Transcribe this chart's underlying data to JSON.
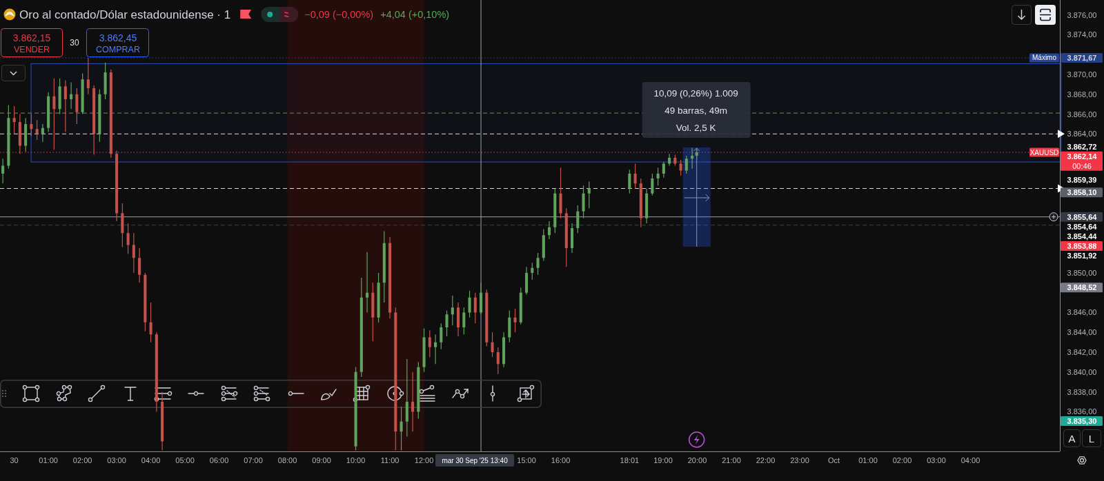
{
  "chart_data": {
    "type": "candlestick",
    "title": "Oro al contado/Dólar estadounidense · 1",
    "x": [
      "2025-09-29T23:40",
      "2025-09-29T23:50",
      "2025-09-30T00:00",
      "2025-09-30T00:10",
      "2025-09-30T00:20",
      "2025-09-30T00:30",
      "2025-09-30T00:40",
      "2025-09-30T00:50",
      "2025-09-30T01:00",
      "2025-09-30T01:10",
      "2025-09-30T01:20",
      "2025-09-30T01:30",
      "2025-09-30T01:40",
      "2025-09-30T01:50",
      "2025-09-30T02:00",
      "2025-09-30T02:10",
      "2025-09-30T02:20",
      "2025-09-30T02:30",
      "2025-09-30T02:40",
      "2025-09-30T02:50",
      "2025-09-30T03:00",
      "2025-09-30T03:10",
      "2025-09-30T03:20",
      "2025-09-30T03:30",
      "2025-09-30T03:40",
      "2025-09-30T03:50",
      "2025-09-30T04:00",
      "2025-09-30T04:10",
      "2025-09-30T04:20",
      "2025-09-30T10:00",
      "2025-09-30T10:10",
      "2025-09-30T10:20",
      "2025-09-30T10:30",
      "2025-09-30T10:40",
      "2025-09-30T10:50",
      "2025-09-30T11:00",
      "2025-09-30T11:10",
      "2025-09-30T11:20",
      "2025-09-30T11:30",
      "2025-09-30T11:40",
      "2025-09-30T11:50",
      "2025-09-30T12:00",
      "2025-09-30T12:10",
      "2025-09-30T12:20",
      "2025-09-30T12:30",
      "2025-09-30T12:40",
      "2025-09-30T12:50",
      "2025-09-30T13:00",
      "2025-09-30T13:10",
      "2025-09-30T13:20",
      "2025-09-30T13:30",
      "2025-09-30T13:40",
      "2025-09-30T13:50",
      "2025-09-30T14:00",
      "2025-09-30T14:10",
      "2025-09-30T14:20",
      "2025-09-30T14:30",
      "2025-09-30T14:40",
      "2025-09-30T14:50",
      "2025-09-30T15:00",
      "2025-09-30T15:10",
      "2025-09-30T15:20",
      "2025-09-30T15:30",
      "2025-09-30T15:40",
      "2025-09-30T15:50",
      "2025-09-30T16:00",
      "2025-09-30T16:10",
      "2025-09-30T16:20",
      "2025-09-30T16:30",
      "2025-09-30T16:40",
      "2025-09-30T16:50",
      "2025-09-30T18:01",
      "2025-09-30T18:11",
      "2025-09-30T18:21",
      "2025-09-30T18:31",
      "2025-09-30T18:41",
      "2025-09-30T18:51",
      "2025-09-30T19:01",
      "2025-09-30T19:11",
      "2025-09-30T19:21",
      "2025-09-30T19:31",
      "2025-09-30T19:41",
      "2025-09-30T19:51",
      "2025-09-30T19:59"
    ],
    "ohlc": [
      [
        3860.0,
        3861.5,
        3859.0,
        3860.8
      ],
      [
        3860.8,
        3866.9,
        3860.5,
        3865.6
      ],
      [
        3865.6,
        3866.8,
        3864.0,
        3865.2
      ],
      [
        3865.2,
        3866.0,
        3862.0,
        3862.8
      ],
      [
        3862.8,
        3865.6,
        3862.2,
        3865.0
      ],
      [
        3865.0,
        3866.0,
        3863.8,
        3864.5
      ],
      [
        3864.5,
        3865.4,
        3863.4,
        3864.0
      ],
      [
        3864.0,
        3865.0,
        3863.2,
        3864.6
      ],
      [
        3864.6,
        3868.2,
        3864.2,
        3867.8
      ],
      [
        3867.8,
        3869.6,
        3862.4,
        3866.5
      ],
      [
        3866.5,
        3869.6,
        3866.0,
        3868.8
      ],
      [
        3868.8,
        3869.4,
        3864.2,
        3867.5
      ],
      [
        3867.5,
        3869.2,
        3866.5,
        3868.0
      ],
      [
        3868.0,
        3868.6,
        3865.0,
        3866.2
      ],
      [
        3866.2,
        3870.1,
        3866.0,
        3869.5
      ],
      [
        3869.5,
        3871.67,
        3868.0,
        3868.6
      ],
      [
        3868.6,
        3868.9,
        3861.9,
        3864.0
      ],
      [
        3864.0,
        3868.5,
        3863.2,
        3868.0
      ],
      [
        3868.0,
        3871.2,
        3867.5,
        3870.2
      ],
      [
        3870.2,
        3870.5,
        3861.6,
        3862.0
      ],
      [
        3862.0,
        3862.3,
        3855.2,
        3856.0
      ],
      [
        3856.0,
        3857.0,
        3852.6,
        3854.0
      ],
      [
        3854.0,
        3855.0,
        3851.9,
        3852.8
      ],
      [
        3852.8,
        3854.0,
        3850.0,
        3851.5
      ],
      [
        3851.5,
        3852.5,
        3849.0,
        3849.8
      ],
      [
        3849.8,
        3850.0,
        3844.1,
        3845.0
      ],
      [
        3845.0,
        3847.0,
        3843.0,
        3843.8
      ],
      [
        3843.8,
        3844.0,
        3836.0,
        3837.0
      ],
      [
        3837.0,
        3838.0,
        3832.1,
        3833.0
      ],
      [
        3832.5,
        3840.5,
        3832.1,
        3840.0
      ],
      [
        3840.0,
        3849.5,
        3839.5,
        3847.5
      ],
      [
        3847.5,
        3852.1,
        3846.0,
        3848.0
      ],
      [
        3848.0,
        3849.0,
        3843.1,
        3845.5
      ],
      [
        3845.5,
        3850.0,
        3845.0,
        3849.0
      ],
      [
        3849.0,
        3854.2,
        3847.0,
        3853.0
      ],
      [
        3853.0,
        3853.6,
        3845.4,
        3846.0
      ],
      [
        3846.0,
        3846.5,
        3832.1,
        3834.0
      ],
      [
        3834.0,
        3836.5,
        3832.1,
        3835.0
      ],
      [
        3835.0,
        3841.3,
        3833.5,
        3837.0
      ],
      [
        3837.0,
        3840.0,
        3834.0,
        3836.0
      ],
      [
        3836.0,
        3841.0,
        3835.3,
        3840.5
      ],
      [
        3840.5,
        3844.4,
        3840.0,
        3843.5
      ],
      [
        3843.5,
        3844.2,
        3841.5,
        3842.5
      ],
      [
        3842.5,
        3843.8,
        3840.8,
        3843.0
      ],
      [
        3843.0,
        3844.9,
        3842.3,
        3844.5
      ],
      [
        3844.5,
        3846.2,
        3843.6,
        3845.8
      ],
      [
        3845.8,
        3847.7,
        3844.7,
        3846.5
      ],
      [
        3846.5,
        3847.0,
        3843.6,
        3844.5
      ],
      [
        3844.5,
        3846.5,
        3843.8,
        3846.0
      ],
      [
        3846.0,
        3848.2,
        3845.5,
        3847.5
      ],
      [
        3847.5,
        3848.0,
        3844.9,
        3846.0
      ],
      [
        3846.0,
        3849.0,
        3845.8,
        3848.0
      ],
      [
        3848.0,
        3848.3,
        3842.6,
        3843.0
      ],
      [
        3843.0,
        3844.0,
        3841.5,
        3842.0
      ],
      [
        3842.0,
        3842.5,
        3839.8,
        3840.8
      ],
      [
        3840.8,
        3844.0,
        3840.5,
        3843.5
      ],
      [
        3843.5,
        3846.2,
        3843.0,
        3845.5
      ],
      [
        3845.5,
        3846.4,
        3844.0,
        3845.0
      ],
      [
        3845.0,
        3848.5,
        3844.8,
        3848.0
      ],
      [
        3848.0,
        3850.6,
        3847.8,
        3850.0
      ],
      [
        3850.0,
        3851.0,
        3849.3,
        3850.5
      ],
      [
        3850.5,
        3852.0,
        3849.8,
        3851.5
      ],
      [
        3851.5,
        3854.4,
        3851.2,
        3853.8
      ],
      [
        3853.8,
        3855.2,
        3853.4,
        3854.6
      ],
      [
        3854.6,
        3858.5,
        3854.0,
        3858.0
      ],
      [
        3858.0,
        3860.6,
        3855.5,
        3856.0
      ],
      [
        3856.0,
        3856.5,
        3850.6,
        3852.5
      ],
      [
        3852.5,
        3855.0,
        3852.0,
        3854.5
      ],
      [
        3854.5,
        3856.8,
        3854.0,
        3856.2
      ],
      [
        3856.2,
        3858.8,
        3855.5,
        3858.0
      ],
      [
        3858.0,
        3859.2,
        3856.5,
        3858.5
      ],
      [
        3858.5,
        3860.4,
        3858.0,
        3860.0
      ],
      [
        3860.0,
        3861.0,
        3858.5,
        3859.0
      ],
      [
        3859.0,
        3859.5,
        3854.6,
        3855.5
      ],
      [
        3855.5,
        3858.5,
        3855.0,
        3858.0
      ],
      [
        3858.0,
        3860.0,
        3857.8,
        3859.5
      ],
      [
        3859.5,
        3860.6,
        3858.8,
        3860.0
      ],
      [
        3860.0,
        3861.2,
        3859.6,
        3861.0
      ],
      [
        3861.0,
        3862.0,
        3860.8,
        3861.6
      ],
      [
        3861.6,
        3861.9,
        3860.8,
        3861.0
      ],
      [
        3861.0,
        3861.4,
        3859.8,
        3860.3
      ],
      [
        3860.3,
        3861.8,
        3860.0,
        3861.5
      ],
      [
        3861.5,
        3862.6,
        3860.5,
        3861.8
      ],
      [
        3861.8,
        3862.6,
        3861.4,
        3862.14
      ]
    ],
    "colors": [
      "#5fa35c",
      "#5fa35c",
      "#c4524a",
      "#c4524a",
      "#5fa35c",
      "#c4524a",
      "#c4524a",
      "#5fa35c",
      "#5fa35c",
      "#c4524a",
      "#5fa35c",
      "#c4524a",
      "#5fa35c",
      "#c4524a",
      "#5fa35c",
      "#c4524a",
      "#c4524a",
      "#5fa35c",
      "#5fa35c",
      "#c4524a",
      "#c4524a",
      "#c4524a",
      "#c4524a",
      "#c4524a",
      "#c4524a",
      "#c4524a",
      "#c4524a",
      "#c4524a",
      "#c4524a",
      "#5fa35c",
      "#5fa35c",
      "#5fa35c",
      "#c4524a",
      "#5fa35c",
      "#5fa35c",
      "#c4524a",
      "#c4524a",
      "#5fa35c",
      "#5fa35c",
      "#c4524a",
      "#5fa35c",
      "#5fa35c",
      "#c4524a",
      "#5fa35c",
      "#5fa35c",
      "#5fa35c",
      "#5fa35c",
      "#c4524a",
      "#5fa35c",
      "#5fa35c",
      "#c4524a",
      "#5fa35c",
      "#c4524a",
      "#c4524a",
      "#c4524a",
      "#5fa35c",
      "#5fa35c",
      "#c4524a",
      "#5fa35c",
      "#5fa35c",
      "#5fa35c",
      "#5fa35c",
      "#5fa35c",
      "#5fa35c",
      "#5fa35c",
      "#c4524a",
      "#c4524a",
      "#5fa35c",
      "#5fa35c",
      "#5fa35c",
      "#5fa35c",
      "#5fa35c",
      "#c4524a",
      "#c4524a",
      "#5fa35c",
      "#5fa35c",
      "#5fa35c",
      "#5fa35c",
      "#5fa35c",
      "#c4524a",
      "#c4524a",
      "#5fa35c",
      "#5fa35c",
      "#5fa35c"
    ],
    "xlim": [
      "2025-09-29T23:35",
      "2025-10-01T06:37"
    ],
    "xticks": [
      {
        "value": "2025-09-30T00:00",
        "label": "30"
      },
      {
        "value": "2025-09-30T01:00",
        "label": "01:00"
      },
      {
        "value": "2025-09-30T02:00",
        "label": "02:00"
      },
      {
        "value": "2025-09-30T03:00",
        "label": "03:00"
      },
      {
        "value": "2025-09-30T04:00",
        "label": "04:00"
      },
      {
        "value": "2025-09-30T05:00",
        "label": "05:00"
      },
      {
        "value": "2025-09-30T06:00",
        "label": "06:00"
      },
      {
        "value": "2025-09-30T07:00",
        "label": "07:00"
      },
      {
        "value": "2025-09-30T08:00",
        "label": "08:00"
      },
      {
        "value": "2025-09-30T09:00",
        "label": "09:00"
      },
      {
        "value": "2025-09-30T10:00",
        "label": "10:00"
      },
      {
        "value": "2025-09-30T11:00",
        "label": "11:00"
      },
      {
        "value": "2025-09-30T12:00",
        "label": "12:00"
      },
      {
        "value": "2025-09-30T15:00",
        "label": "15:00"
      },
      {
        "value": "2025-09-30T16:00",
        "label": "16:00"
      },
      {
        "value": "2025-09-30T18:01",
        "label": "18:01"
      },
      {
        "value": "2025-09-30T19:00",
        "label": "19:00"
      },
      {
        "value": "2025-09-30T20:00",
        "label": "20:00"
      },
      {
        "value": "2025-09-30T21:00",
        "label": "21:00"
      },
      {
        "value": "2025-09-30T22:00",
        "label": "22:00"
      },
      {
        "value": "2025-09-30T23:00",
        "label": "23:00"
      },
      {
        "value": "2025-10-01T00:00",
        "label": "Oct"
      },
      {
        "value": "2025-10-01T01:00",
        "label": "01:00"
      },
      {
        "value": "2025-10-01T02:00",
        "label": "02:00"
      },
      {
        "value": "2025-10-01T03:00",
        "label": "03:00"
      },
      {
        "value": "2025-10-01T04:00",
        "label": "04:00"
      }
    ],
    "ylim": [
      3832.0,
      3877.5
    ],
    "yticks": [
      {
        "value": 3876,
        "label": "3.876,00"
      },
      {
        "value": 3874,
        "label": "3.874,00"
      },
      {
        "value": 3870,
        "label": "3.870,00"
      },
      {
        "value": 3868,
        "label": "3.868,00"
      },
      {
        "value": 3866,
        "label": "3.866,00"
      },
      {
        "value": 3864,
        "label": "3.864,00"
      },
      {
        "value": 3850,
        "label": "3.850,00"
      },
      {
        "value": 3846,
        "label": "3.846,00"
      },
      {
        "value": 3844,
        "label": "3.844,00"
      },
      {
        "value": 3842,
        "label": "3.842,00"
      },
      {
        "value": 3840,
        "label": "3.840,00"
      },
      {
        "value": 3838,
        "label": "3.838,00"
      },
      {
        "value": 3836,
        "label": "3.836,00"
      }
    ],
    "bands": [
      {
        "axis": "x",
        "from": "2025-09-30T08:00",
        "to": "2025-09-30T12:00",
        "color": "#240d0b"
      },
      {
        "axis": "y",
        "from": 3861.17,
        "to": 3871.08,
        "color": "#2446a8"
      }
    ],
    "ref_lines": [
      {
        "axis": "y",
        "value": 3871.67,
        "label": "Máximo",
        "color": "#2a4590",
        "line_style": "dotted"
      },
      {
        "axis": "y",
        "value": 3866.1,
        "color": "#7f8a5a",
        "line_style": "dashed"
      },
      {
        "axis": "y",
        "value": 3864.0,
        "color": "#dcdcdc",
        "line_style": "dashed"
      },
      {
        "axis": "y",
        "value": 3862.14,
        "label": "XAUUSD",
        "color": "#f23645",
        "line_style": "dotted"
      },
      {
        "axis": "y",
        "value": 3858.5,
        "color": "#dcdcdc",
        "line_style": "dashed"
      },
      {
        "axis": "y",
        "value": 3855.64,
        "color": "#a0a3ab",
        "line_style": "solid"
      },
      {
        "axis": "y",
        "value": 3854.8,
        "color": "#3c3f48",
        "line_style": "dashed"
      },
      {
        "axis": "x",
        "value": "2025-09-30T13:40",
        "label": "mar 30 Sep '25 13:40",
        "color": "#a0a3ab",
        "line_style": "solid"
      }
    ],
    "annotations": [
      "−0,09 (−0,00%)",
      "+4,04 (+0,10%)",
      "3.862,15",
      "VENDER",
      "30",
      "3.862,45",
      "COMPRAR",
      "10,09 (0,26%) 1.009",
      "49 barras, 49m",
      "Vol. 2,5 K",
      "3.871,67",
      "3.862,72",
      "3.862,14",
      "3.859,39",
      "3.858,10",
      "3.855,64",
      "3.854,64",
      "3.854,44",
      "3.853,88",
      "3.851,92",
      "3.848,52",
      "3.835,30",
      "00:46",
      "A",
      "L"
    ]
  }
}
